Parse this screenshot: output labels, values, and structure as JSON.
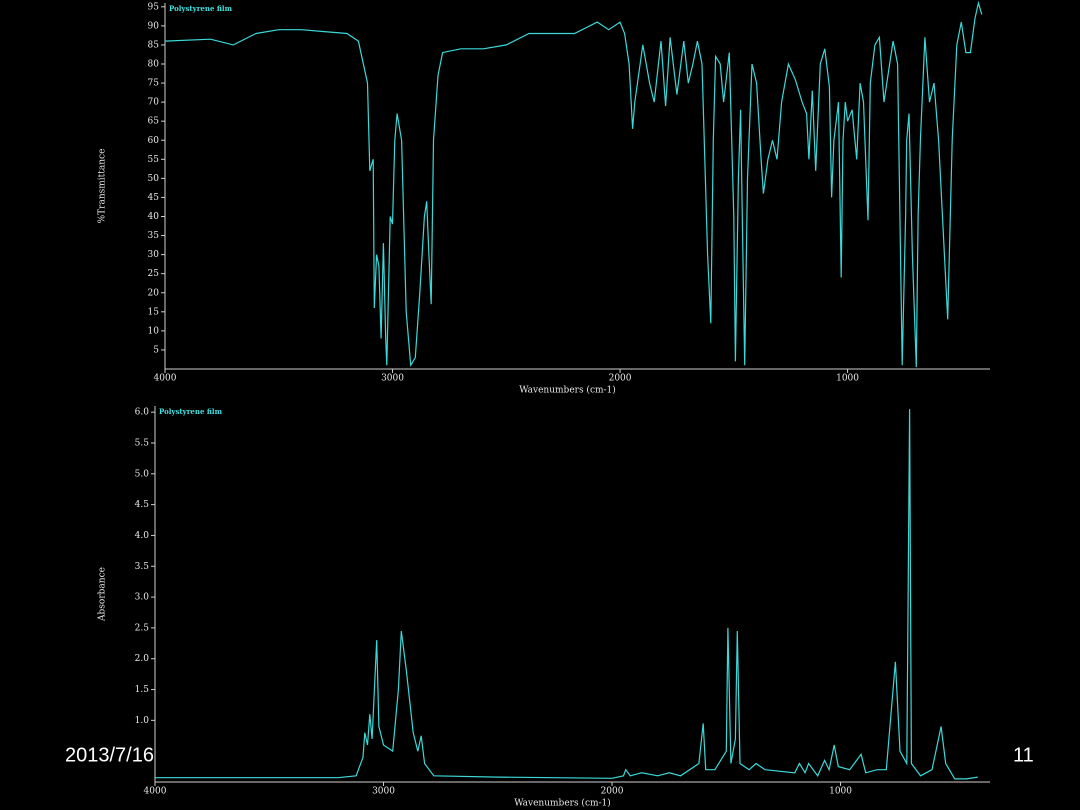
{
  "chart_data": [
    {
      "type": "line",
      "xlabel": "Wavenumbers (cm-1)",
      "ylabel": "%Transmittance",
      "xlim": [
        4000,
        374
      ],
      "ylim": [
        0,
        96
      ],
      "xticks": [
        4000,
        3000,
        2000,
        1000
      ],
      "yticks": [
        5,
        10,
        15,
        20,
        25,
        30,
        35,
        40,
        45,
        50,
        55,
        60,
        65,
        70,
        75,
        80,
        85,
        90,
        95
      ],
      "x": [
        4000,
        3800,
        3700,
        3600,
        3500,
        3400,
        3300,
        3200,
        3150,
        3110,
        3100,
        3085,
        3080,
        3070,
        3060,
        3050,
        3040,
        3030,
        3025,
        3010,
        3000,
        2990,
        2980,
        2960,
        2940,
        2920,
        2900,
        2880,
        2860,
        2850,
        2840,
        2830,
        2820,
        2800,
        2780,
        2700,
        2600,
        2500,
        2400,
        2300,
        2200,
        2100,
        2050,
        2000,
        1980,
        1960,
        1945,
        1935,
        1900,
        1870,
        1850,
        1820,
        1800,
        1780,
        1750,
        1720,
        1700,
        1680,
        1660,
        1640,
        1615,
        1601,
        1590,
        1580,
        1560,
        1545,
        1520,
        1500,
        1493,
        1480,
        1470,
        1460,
        1452,
        1440,
        1420,
        1400,
        1380,
        1370,
        1350,
        1330,
        1310,
        1290,
        1260,
        1230,
        1200,
        1180,
        1170,
        1155,
        1140,
        1120,
        1100,
        1080,
        1070,
        1060,
        1040,
        1028,
        1020,
        1010,
        1000,
        980,
        960,
        945,
        930,
        910,
        900,
        880,
        860,
        840,
        820,
        800,
        780,
        760,
        745,
        740,
        730,
        715,
        698,
        690,
        680,
        660,
        640,
        620,
        600,
        560,
        540,
        520,
        500,
        480,
        460,
        440,
        425,
        410
      ],
      "series": [
        {
          "name": "Polystyrene film",
          "color": "#3cd8d8",
          "values": [
            86,
            86.5,
            85,
            88,
            89,
            89,
            88.5,
            88,
            86,
            75,
            52,
            55,
            16,
            30,
            27,
            8,
            33,
            8,
            1,
            40,
            38,
            60,
            67,
            60,
            15,
            1,
            3,
            20,
            40,
            44,
            30,
            17,
            60,
            77,
            83,
            84,
            84,
            85,
            88,
            88,
            88,
            91,
            89,
            91,
            88,
            80,
            63,
            70,
            85,
            75,
            70,
            86,
            69,
            87,
            72,
            86,
            75,
            80,
            86,
            80,
            30,
            12,
            60,
            82,
            80,
            70,
            83,
            40,
            2,
            50,
            68,
            30,
            1,
            50,
            80,
            75,
            55,
            46,
            55,
            60,
            55,
            70,
            80,
            76,
            70,
            67,
            55,
            73,
            52,
            80,
            84,
            74,
            45,
            60,
            70,
            24,
            60,
            70,
            65,
            68,
            55,
            75,
            70,
            39,
            75,
            85,
            87,
            70,
            78,
            86,
            80,
            1,
            40,
            60,
            67,
            30,
            0.5,
            40,
            60,
            87,
            70,
            75,
            60,
            13,
            60,
            85,
            91,
            83,
            83,
            92,
            96,
            93
          ]
        }
      ]
    },
    {
      "type": "line",
      "xlabel": "Wavenumbers (cm-1)",
      "ylabel": "Absorbance",
      "xlim": [
        4000,
        346
      ],
      "ylim": [
        0,
        6.1
      ],
      "xticks": [
        4000,
        3000,
        2000,
        1000
      ],
      "yticks": [
        {
          "value": 1,
          "label": "1.0"
        },
        1.5,
        {
          "value": 2,
          "label": "2.0"
        },
        2.5,
        {
          "value": 3,
          "label": "3.0"
        },
        3.5,
        {
          "value": 4,
          "label": "4.0"
        },
        4.5,
        {
          "value": 5,
          "label": "5.0"
        },
        5.5,
        {
          "value": 6,
          "label": "6.0"
        }
      ],
      "x": [
        4000,
        3200,
        3120,
        3090,
        3082,
        3070,
        3060,
        3050,
        3030,
        3020,
        3000,
        2960,
        2935,
        2922,
        2900,
        2870,
        2850,
        2835,
        2820,
        2780,
        2500,
        2000,
        1950,
        1940,
        1920,
        1870,
        1800,
        1750,
        1700,
        1620,
        1601,
        1590,
        1550,
        1500,
        1493,
        1480,
        1460,
        1452,
        1440,
        1400,
        1370,
        1330,
        1200,
        1180,
        1155,
        1140,
        1100,
        1070,
        1050,
        1028,
        1010,
        960,
        910,
        890,
        840,
        800,
        760,
        740,
        710,
        698,
        690,
        650,
        600,
        560,
        540,
        500,
        450,
        400
      ],
      "series": [
        {
          "name": "Polystyrene film",
          "color": "#3cd8d8",
          "values": [
            0.07,
            0.07,
            0.1,
            0.4,
            0.8,
            0.6,
            1.1,
            0.7,
            2.3,
            0.9,
            0.6,
            0.5,
            1.5,
            2.45,
            1.8,
            0.8,
            0.5,
            0.75,
            0.3,
            0.1,
            0.08,
            0.06,
            0.1,
            0.2,
            0.1,
            0.15,
            0.1,
            0.15,
            0.1,
            0.3,
            0.95,
            0.2,
            0.2,
            0.5,
            2.5,
            0.3,
            0.7,
            2.45,
            0.3,
            0.2,
            0.3,
            0.2,
            0.15,
            0.3,
            0.15,
            0.3,
            0.1,
            0.35,
            0.2,
            0.6,
            0.25,
            0.2,
            0.45,
            0.15,
            0.2,
            0.2,
            1.95,
            0.5,
            0.3,
            6.05,
            0.3,
            0.1,
            0.2,
            0.9,
            0.3,
            0.05,
            0.05,
            0.08
          ]
        }
      ]
    }
  ],
  "footer": {
    "date": "2013/7/16",
    "page": "11"
  }
}
